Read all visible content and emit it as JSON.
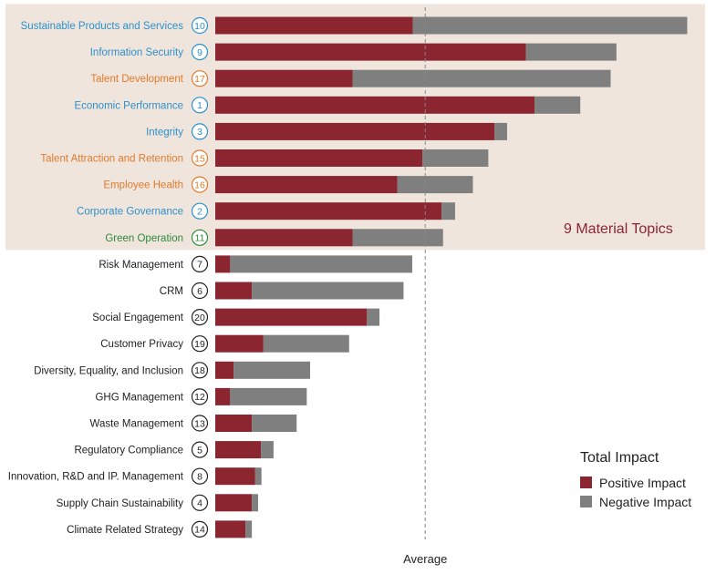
{
  "colors": {
    "positive": "#8b2530",
    "negative": "#7f7f7f",
    "highlight_bg": "#efe5dd",
    "blue": "#2e90c9",
    "orange": "#e07b2b",
    "green": "#2e8b3a",
    "black": "#222222"
  },
  "chart_data": {
    "type": "bar",
    "orientation": "horizontal",
    "stacked": true,
    "xlim": [
      0,
      100
    ],
    "average_value": 43.6,
    "average_label": "Average",
    "grid": false,
    "series": [
      {
        "name": "Positive Impact",
        "color": "#8b2530"
      },
      {
        "name": "Negative Impact",
        "color": "#7f7f7f"
      }
    ],
    "categories": [
      {
        "label": "Sustainable Products and Services",
        "num": "10",
        "color": "blue",
        "positive": 41.0,
        "negative": 57.0
      },
      {
        "label": "Information Security",
        "num": "9",
        "color": "blue",
        "positive": 64.5,
        "negative": 18.8
      },
      {
        "label": "Talent Development",
        "num": "17",
        "color": "orange",
        "positive": 28.5,
        "negative": 53.6
      },
      {
        "label": "Economic Performance",
        "num": "1",
        "color": "blue",
        "positive": 66.3,
        "negative": 9.5
      },
      {
        "label": "Integrity",
        "num": "3",
        "color": "blue",
        "positive": 58.0,
        "negative": 2.6
      },
      {
        "label": "Talent Attraction and Retention",
        "num": "15",
        "color": "orange",
        "positive": 43.0,
        "negative": 13.7
      },
      {
        "label": "Employee Health",
        "num": "16",
        "color": "orange",
        "positive": 37.8,
        "negative": 15.7
      },
      {
        "label": "Corporate Governance",
        "num": "2",
        "color": "blue",
        "positive": 47.0,
        "negative": 2.8
      },
      {
        "label": "Green Operation",
        "num": "11",
        "color": "green",
        "positive": 28.5,
        "negative": 18.8
      },
      {
        "label": "Risk Management",
        "num": "7",
        "color": "black",
        "positive": 3.1,
        "negative": 37.8
      },
      {
        "label": "CRM",
        "num": "6",
        "color": "black",
        "positive": 7.6,
        "negative": 31.5
      },
      {
        "label": "Social Engagement",
        "num": "20",
        "color": "black",
        "positive": 31.5,
        "negative": 2.6
      },
      {
        "label": "Customer Privacy",
        "num": "19",
        "color": "black",
        "positive": 10.0,
        "negative": 17.8
      },
      {
        "label": "Diversity, Equality, and Inclusion",
        "num": "18",
        "color": "black",
        "positive": 3.8,
        "negative": 15.9
      },
      {
        "label": "GHG Management",
        "num": "12",
        "color": "black",
        "positive": 3.1,
        "negative": 15.9
      },
      {
        "label": "Waste Management",
        "num": "13",
        "color": "black",
        "positive": 7.6,
        "negative": 9.3
      },
      {
        "label": "Regulatory Compliance",
        "num": "5",
        "color": "black",
        "positive": 9.5,
        "negative": 2.6
      },
      {
        "label": "Innovation, R&D and IP. Management",
        "num": "8",
        "color": "black",
        "positive": 8.3,
        "negative": 1.3
      },
      {
        "label": "Supply Chain Sustainability",
        "num": "4",
        "color": "black",
        "positive": 7.6,
        "negative": 1.3
      },
      {
        "label": "Climate Related Strategy",
        "num": "14",
        "color": "black",
        "positive": 6.3,
        "negative": 1.3
      }
    ],
    "highlight": {
      "label": "9 Material Topics",
      "count": 9
    },
    "legend": {
      "title": "Total Impact",
      "position": "bottom-right"
    }
  }
}
